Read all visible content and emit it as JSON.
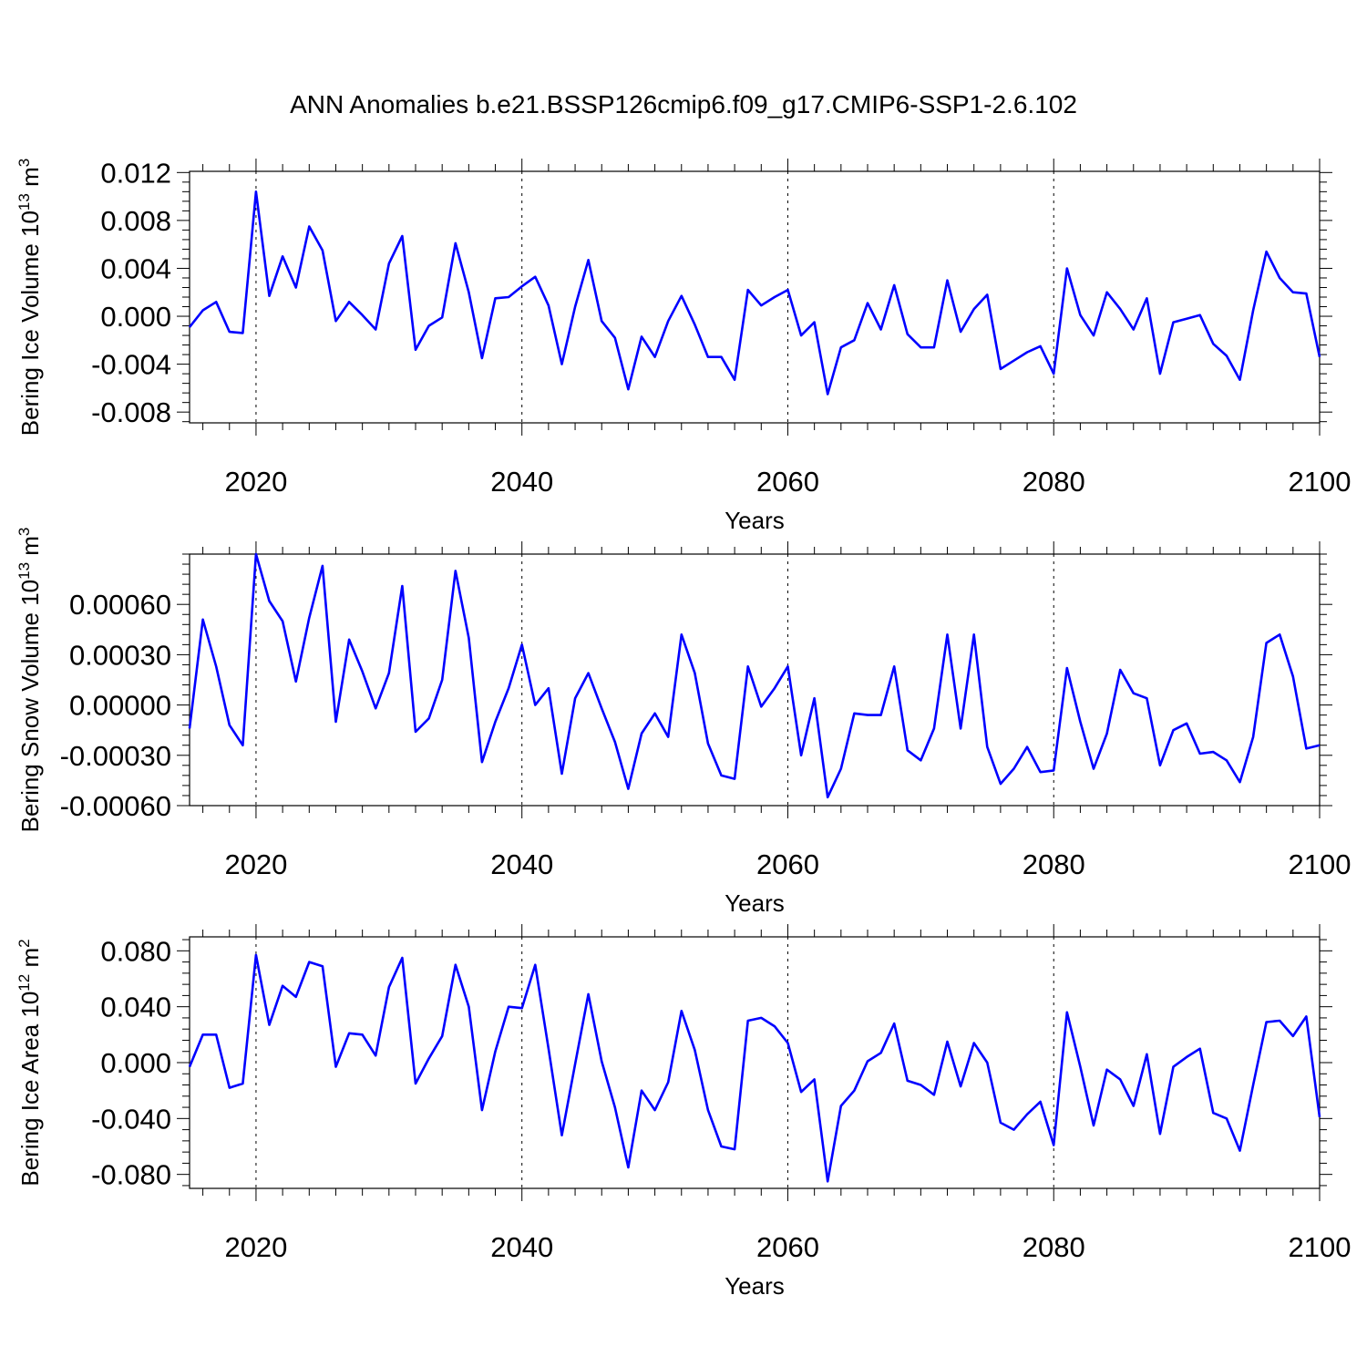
{
  "figure": {
    "title": "ANN Anomalies b.e21.BSSP126cmip6.f09_g17.CMIP6-SSP1-2.6.102"
  },
  "chart_data": [
    {
      "type": "line",
      "title": "ANN Anomalies b.e21.BSSP126cmip6.f09_g17.CMIP6-SSP1-2.6.102",
      "ylabel": "Bering Ice Volume 10",
      "ylabel_unit_exponent": "13",
      "ylabel_unit": "m",
      "ylabel_unit_power": "3",
      "xlabel": "Years",
      "xlim": [
        2015,
        2100
      ],
      "ylim": [
        -0.0089,
        0.0121
      ],
      "x_ticks": [
        2020,
        2040,
        2060,
        2080,
        2100
      ],
      "x_tick_labels": [
        "2020",
        "2040",
        "2060",
        "2080",
        "2100"
      ],
      "y_ticks": [
        0.012,
        0.008,
        0.004,
        0.0,
        -0.004,
        -0.008
      ],
      "y_tick_labels": [
        "0.012",
        "0.008",
        "0.004",
        "0.000",
        "-0.004",
        "-0.008"
      ],
      "grid": "dashed vertical lines at major x ticks",
      "line_color": "#0000ff",
      "x_start": 2015,
      "values": [
        -0.0009,
        0.0005,
        0.0012,
        -0.0013,
        -0.0014,
        0.0104,
        0.0017,
        0.005,
        0.0024,
        0.0075,
        0.0055,
        -0.0004,
        0.0012,
        0.0001,
        -0.0011,
        0.0044,
        0.0067,
        -0.0028,
        -0.0008,
        -0.0001,
        0.0061,
        0.002,
        -0.0035,
        0.0015,
        0.0016,
        0.0025,
        0.0033,
        0.0009,
        -0.004,
        0.0008,
        0.0047,
        -0.0004,
        -0.0018,
        -0.0061,
        -0.0017,
        -0.0034,
        -0.0004,
        0.0017,
        -0.0007,
        -0.0034,
        -0.0034,
        -0.0053,
        0.0022,
        0.0009,
        0.0016,
        0.0022,
        -0.0016,
        -0.0005,
        -0.0065,
        -0.0026,
        -0.002,
        0.0011,
        -0.0011,
        0.0026,
        -0.0015,
        -0.0026,
        -0.0026,
        0.003,
        -0.0013,
        0.0006,
        0.0018,
        -0.0044,
        -0.0037,
        -0.003,
        -0.0025,
        -0.0048,
        0.004,
        0.0001,
        -0.0016,
        0.002,
        0.0006,
        -0.0011,
        0.0015,
        -0.0048,
        -0.0005,
        -0.0002,
        0.0001,
        -0.0023,
        -0.0033,
        -0.0053,
        0.0005,
        0.0054,
        0.0032,
        0.002,
        0.0019,
        -0.0034
      ]
    },
    {
      "type": "line",
      "ylabel": "Bering Snow Volume 10",
      "ylabel_unit_exponent": "13",
      "ylabel_unit": "m",
      "ylabel_unit_power": "3",
      "xlabel": "Years",
      "xlim": [
        2015,
        2100
      ],
      "ylim": [
        -0.0006,
        0.0009
      ],
      "x_ticks": [
        2020,
        2040,
        2060,
        2080,
        2100
      ],
      "x_tick_labels": [
        "2020",
        "2040",
        "2060",
        "2080",
        "2100"
      ],
      "y_ticks": [
        0.0006,
        0.0003,
        0.0,
        -0.0003,
        -0.0006
      ],
      "y_tick_labels": [
        "0.00060",
        "0.00030",
        "0.00000",
        "-0.00030",
        "-0.00060"
      ],
      "grid": "dashed vertical lines at major x ticks",
      "line_color": "#0000ff",
      "x_start": 2015,
      "values": [
        -0.00014,
        0.00051,
        0.00023,
        -0.00012,
        -0.00024,
        0.0009,
        0.00062,
        0.0005,
        0.00014,
        0.00052,
        0.00083,
        -0.0001,
        0.00039,
        0.0002,
        -2e-05,
        0.00019,
        0.00071,
        -0.00016,
        -8e-05,
        0.00015,
        0.0008,
        0.0004,
        -0.00034,
        -0.0001,
        0.0001,
        0.00036,
        0.0,
        0.0001,
        -0.00041,
        4e-05,
        0.00019,
        -2e-05,
        -0.00022,
        -0.0005,
        -0.00017,
        -5e-05,
        -0.00019,
        0.00042,
        0.00019,
        -0.00023,
        -0.00042,
        -0.00044,
        0.00023,
        -1e-05,
        0.0001,
        0.00023,
        -0.0003,
        4e-05,
        -0.00055,
        -0.00038,
        -5e-05,
        -6e-05,
        -6e-05,
        0.00023,
        -0.00027,
        -0.00033,
        -0.00014,
        0.00042,
        -0.00014,
        0.00042,
        -0.00025,
        -0.00047,
        -0.00038,
        -0.00025,
        -0.0004,
        -0.00039,
        0.00022,
        -0.0001,
        -0.00038,
        -0.00017,
        0.00021,
        7e-05,
        4e-05,
        -0.00036,
        -0.00015,
        -0.00011,
        -0.00029,
        -0.00028,
        -0.00033,
        -0.00046,
        -0.00019,
        0.00037,
        0.00042,
        0.00017,
        -0.00026,
        -0.00024
      ]
    },
    {
      "type": "line",
      "ylabel": "Bering Ice Area 10",
      "ylabel_unit_exponent": "12",
      "ylabel_unit": "m",
      "ylabel_unit_power": "2",
      "xlabel": "Years",
      "xlim": [
        2015,
        2100
      ],
      "ylim": [
        -0.09,
        0.09
      ],
      "x_ticks": [
        2020,
        2040,
        2060,
        2080,
        2100
      ],
      "x_tick_labels": [
        "2020",
        "2040",
        "2060",
        "2080",
        "2100"
      ],
      "y_ticks": [
        0.08,
        0.04,
        0.0,
        -0.04,
        -0.08
      ],
      "y_tick_labels": [
        "0.080",
        "0.040",
        "0.000",
        "-0.040",
        "-0.080"
      ],
      "grid": "dashed vertical lines at major x ticks",
      "line_color": "#0000ff",
      "x_start": 2015,
      "values": [
        -0.003,
        0.02,
        0.02,
        -0.018,
        -0.015,
        0.077,
        0.027,
        0.055,
        0.047,
        0.072,
        0.069,
        -0.003,
        0.021,
        0.02,
        0.005,
        0.054,
        0.075,
        -0.015,
        0.003,
        0.019,
        0.07,
        0.04,
        -0.034,
        0.008,
        0.04,
        0.039,
        0.07,
        0.01,
        -0.052,
        -0.001,
        0.049,
        0.001,
        -0.032,
        -0.075,
        -0.02,
        -0.034,
        -0.014,
        0.037,
        0.009,
        -0.034,
        -0.06,
        -0.062,
        0.03,
        0.032,
        0.026,
        0.014,
        -0.021,
        -0.012,
        -0.085,
        -0.031,
        -0.02,
        0.001,
        0.007,
        0.028,
        -0.013,
        -0.016,
        -0.023,
        0.015,
        -0.017,
        0.014,
        0.0,
        -0.043,
        -0.048,
        -0.037,
        -0.028,
        -0.059,
        0.036,
        -0.003,
        -0.045,
        -0.005,
        -0.012,
        -0.031,
        0.006,
        -0.051,
        -0.003,
        0.004,
        0.01,
        -0.036,
        -0.04,
        -0.063,
        -0.016,
        0.029,
        0.03,
        0.019,
        0.033,
        -0.039
      ]
    }
  ]
}
